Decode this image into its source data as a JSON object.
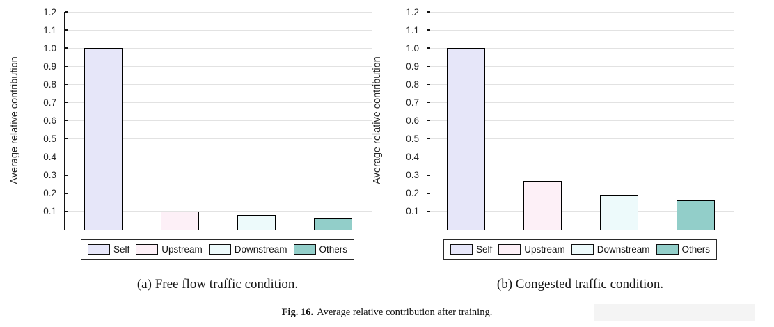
{
  "figure": {
    "caption_label": "Fig. 16.",
    "caption_text": "Average relative contribution after training."
  },
  "palette": {
    "self": "#e6e6f9",
    "upstream": "#fdf0f7",
    "downstream": "#edfafb",
    "others": "#92cec9",
    "bar_border": "#000000",
    "gridline": "#e2e2e2",
    "axis": "#141414",
    "tick_text": "#262626"
  },
  "chart_data": [
    {
      "type": "bar",
      "title": "(a) Free flow traffic condition.",
      "categories": [
        "Self",
        "Upstream",
        "Downstream",
        "Others"
      ],
      "values": [
        1.0,
        0.1,
        0.08,
        0.06
      ],
      "bar_colors": [
        "#e6e6f9",
        "#fdf0f7",
        "#edfafb",
        "#92cec9"
      ],
      "ylabel": "Average relative contribution",
      "xlabel": "",
      "ylim": [
        0,
        1.2
      ],
      "yticks": [
        0.1,
        0.2,
        0.3,
        0.4,
        0.5,
        0.6,
        0.7,
        0.8,
        0.9,
        1.0,
        1.1,
        1.2
      ],
      "grid": true,
      "legend": [
        "Self",
        "Upstream",
        "Downstream",
        "Others"
      ],
      "legend_position": "below"
    },
    {
      "type": "bar",
      "title": "(b) Congested traffic condition.",
      "categories": [
        "Self",
        "Upstream",
        "Downstream",
        "Others"
      ],
      "values": [
        1.0,
        0.27,
        0.19,
        0.16
      ],
      "bar_colors": [
        "#e6e6f9",
        "#fdf0f7",
        "#edfafb",
        "#92cec9"
      ],
      "ylabel": "Average relative contribution",
      "xlabel": "",
      "ylim": [
        0,
        1.2
      ],
      "yticks": [
        0.1,
        0.2,
        0.3,
        0.4,
        0.5,
        0.6,
        0.7,
        0.8,
        0.9,
        1.0,
        1.1,
        1.2
      ],
      "grid": true,
      "legend": [
        "Self",
        "Upstream",
        "Downstream",
        "Others"
      ],
      "legend_position": "below"
    }
  ]
}
